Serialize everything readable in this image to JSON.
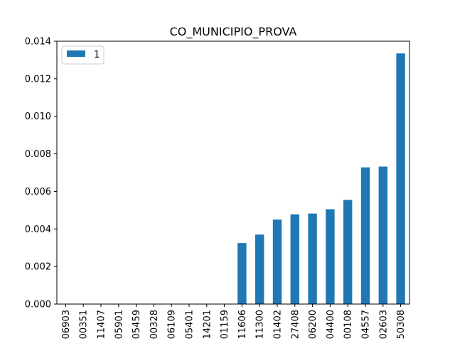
{
  "chart_data": {
    "type": "bar",
    "title": "CO_MUNICIPIO_PROVA",
    "xlabel": "",
    "ylabel": "",
    "categories": [
      "06903",
      "00351",
      "11407",
      "05901",
      "05459",
      "00328",
      "06109",
      "05401",
      "14201",
      "01159",
      "11606",
      "11300",
      "01402",
      "27408",
      "06200",
      "04400",
      "00108",
      "04557",
      "02603",
      "50308"
    ],
    "series": [
      {
        "name": "1",
        "color": "#1f77b4",
        "values": [
          0,
          0,
          0,
          0,
          0,
          0,
          0,
          0,
          0,
          0,
          0.00325,
          0.0037,
          0.0045,
          0.00478,
          0.00482,
          0.00505,
          0.00555,
          0.00728,
          0.00732,
          0.01335
        ]
      }
    ],
    "ylim": [
      0,
      0.014
    ],
    "yticks": [
      "0.000",
      "0.002",
      "0.004",
      "0.006",
      "0.008",
      "0.010",
      "0.012",
      "0.014"
    ],
    "grid": false,
    "legend_position": "top-left"
  }
}
